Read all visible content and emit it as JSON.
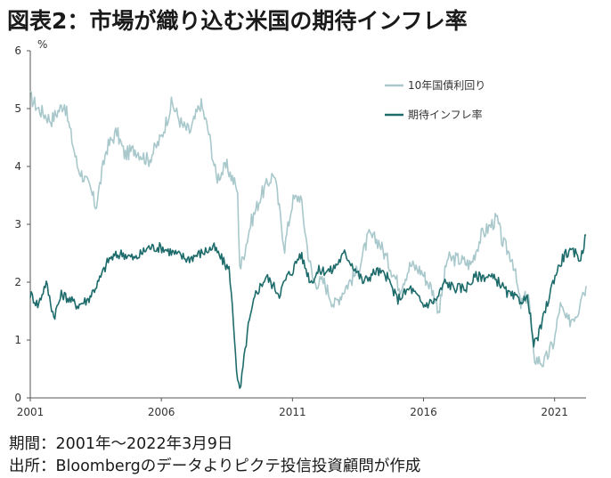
{
  "title": "図表2：市場が織り込む米国の期待インフレ率",
  "notes": {
    "period": "期間：2001年～2022年3月9日",
    "source": "出所：Bloombergのデータよりピクテ投信投資顧問が作成"
  },
  "chart_data": {
    "type": "line",
    "ylabel": "%",
    "ylim": [
      0,
      6
    ],
    "yticks": [
      "0",
      "1",
      "2",
      "3",
      "4",
      "5",
      "6"
    ],
    "xlim": [
      2001.0,
      2022.2
    ],
    "xticks": [
      {
        "label": "2001",
        "value": 2001
      },
      {
        "label": "2006",
        "value": 2006
      },
      {
        "label": "2011",
        "value": 2011
      },
      {
        "label": "2016",
        "value": 2016
      },
      {
        "label": "2021",
        "value": 2021
      }
    ],
    "legend_position": "top-right",
    "series": [
      {
        "name": "10年国債利回り",
        "color": "#a9c8cb",
        "x": [
          2001.0,
          2001.3,
          2001.8,
          2002.3,
          2002.8,
          2003.3,
          2003.5,
          2003.9,
          2004.3,
          2004.6,
          2005.0,
          2005.5,
          2006.0,
          2006.4,
          2006.8,
          2007.1,
          2007.5,
          2007.8,
          2008.1,
          2008.5,
          2008.9,
          2009.0,
          2009.4,
          2009.8,
          2010.3,
          2010.7,
          2011.0,
          2011.3,
          2011.6,
          2011.8,
          2012.2,
          2012.6,
          2013.0,
          2013.5,
          2013.9,
          2014.3,
          2014.8,
          2015.1,
          2015.5,
          2015.9,
          2016.3,
          2016.6,
          2016.9,
          2017.3,
          2017.8,
          2018.2,
          2018.8,
          2019.0,
          2019.4,
          2019.7,
          2020.0,
          2020.2,
          2020.6,
          2021.0,
          2021.2,
          2021.5,
          2021.9,
          2022.0,
          2022.2
        ],
        "y": [
          5.2,
          5.0,
          4.8,
          5.1,
          4.0,
          3.6,
          3.3,
          4.3,
          4.6,
          4.2,
          4.3,
          4.1,
          4.5,
          5.1,
          4.7,
          4.6,
          5.1,
          4.6,
          3.8,
          4.0,
          3.6,
          2.2,
          3.0,
          3.5,
          3.9,
          2.6,
          3.4,
          3.5,
          2.5,
          2.0,
          2.0,
          1.6,
          1.9,
          2.2,
          2.8,
          2.7,
          2.2,
          1.9,
          2.3,
          2.2,
          1.9,
          1.5,
          2.4,
          2.4,
          2.3,
          2.8,
          3.1,
          2.7,
          2.4,
          1.6,
          1.8,
          0.7,
          0.6,
          1.0,
          1.6,
          1.3,
          1.5,
          1.8,
          1.9
        ]
      },
      {
        "name": "期待インフレ率",
        "color": "#1e6b6b",
        "x": [
          2001.0,
          2001.3,
          2001.6,
          2001.9,
          2002.2,
          2002.8,
          2003.2,
          2003.6,
          2004.0,
          2004.5,
          2005.0,
          2005.5,
          2006.0,
          2006.5,
          2007.0,
          2007.5,
          2008.0,
          2008.3,
          2008.6,
          2008.8,
          2008.9,
          2009.0,
          2009.3,
          2009.6,
          2010.0,
          2010.5,
          2010.8,
          2011.0,
          2011.3,
          2011.7,
          2012.0,
          2012.5,
          2013.0,
          2013.3,
          2013.7,
          2014.2,
          2014.6,
          2015.0,
          2015.5,
          2016.0,
          2016.5,
          2016.8,
          2017.2,
          2017.6,
          2018.0,
          2018.5,
          2018.9,
          2019.2,
          2019.6,
          2020.0,
          2020.2,
          2020.4,
          2020.7,
          2021.0,
          2021.4,
          2021.8,
          2022.0,
          2022.1,
          2022.2
        ],
        "y": [
          1.8,
          1.6,
          2.0,
          1.4,
          1.8,
          1.6,
          1.7,
          2.0,
          2.4,
          2.5,
          2.4,
          2.6,
          2.6,
          2.5,
          2.4,
          2.5,
          2.6,
          2.4,
          2.2,
          1.0,
          0.3,
          0.1,
          1.2,
          1.8,
          2.1,
          1.8,
          2.1,
          2.2,
          2.5,
          2.0,
          2.2,
          2.2,
          2.5,
          2.3,
          2.0,
          2.2,
          2.1,
          1.7,
          1.9,
          1.6,
          1.7,
          2.0,
          1.9,
          1.9,
          2.1,
          2.1,
          2.0,
          1.8,
          1.7,
          1.7,
          0.9,
          1.1,
          1.6,
          2.1,
          2.5,
          2.5,
          2.4,
          2.6,
          2.9
        ]
      }
    ]
  }
}
